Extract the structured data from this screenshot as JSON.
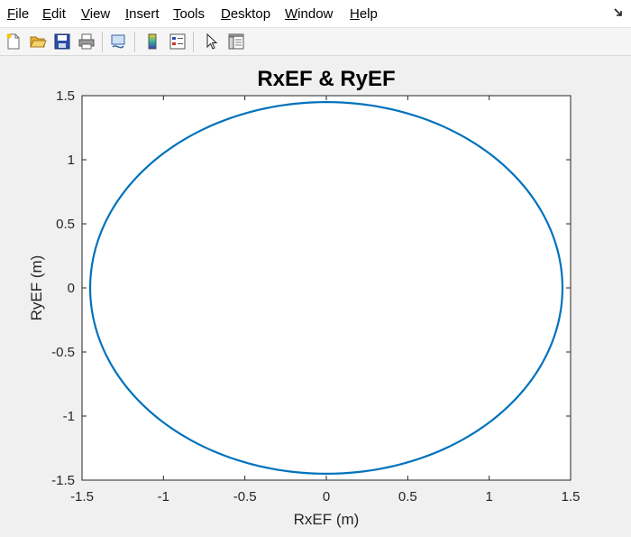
{
  "menu": {
    "items": [
      {
        "mnemonic": "F",
        "rest": "ile"
      },
      {
        "mnemonic": "E",
        "rest": "dit"
      },
      {
        "mnemonic": "V",
        "rest": "iew"
      },
      {
        "mnemonic": "I",
        "rest": "nsert"
      },
      {
        "mnemonic": "T",
        "rest": "ools"
      },
      {
        "mnemonic": "D",
        "rest": "esktop"
      },
      {
        "mnemonic": "W",
        "rest": "indow"
      },
      {
        "mnemonic": "H",
        "rest": "elp"
      }
    ]
  },
  "toolbar": {
    "icons": [
      "new-figure-icon",
      "open-file-icon",
      "save-icon",
      "print-icon",
      "link-plot-icon",
      "colorbar-icon",
      "legend-icon",
      "pointer-icon",
      "property-inspector-icon"
    ]
  },
  "chart_data": {
    "type": "line",
    "title": "RxEF & RyEF",
    "xlabel": "RxEF (m)",
    "ylabel": "RyEF (m)",
    "xlim": [
      -1.5,
      1.5
    ],
    "ylim": [
      -1.5,
      1.5
    ],
    "xticks": [
      -1.5,
      -1,
      -0.5,
      0,
      0.5,
      1,
      1.5
    ],
    "yticks": [
      -1.5,
      -1,
      -0.5,
      0,
      0.5,
      1,
      1.5
    ],
    "xtick_labels": [
      "-1.5",
      "-1",
      "-0.5",
      "0",
      "0.5",
      "1",
      "1.5"
    ],
    "ytick_labels": [
      "-1.5",
      "-1",
      "-0.5",
      "0",
      "0.5",
      "1",
      "1.5"
    ],
    "grid": false,
    "series": [
      {
        "color": "#0072bd",
        "shape": "circle",
        "center": [
          0,
          0
        ],
        "radius": 1.45
      }
    ]
  }
}
